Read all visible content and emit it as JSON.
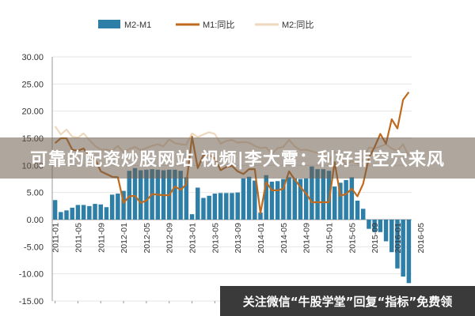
{
  "chart_data": {
    "type": "bar+line",
    "legend_position": "top",
    "colors": {
      "m2m1": "#2E7FA8",
      "m1": "#C06A1E",
      "m2": "#EED9BE"
    },
    "series": [
      {
        "name": "M2-M1",
        "type": "bar",
        "values": [
          3.6,
          1.4,
          1.7,
          2.2,
          2.7,
          2.7,
          2.5,
          2.9,
          2.8,
          2.3,
          4.6,
          4.8,
          5.3,
          9.0,
          9.5,
          9.1,
          9.2,
          9.3,
          9.2,
          9.1,
          9.2,
          9.2,
          9.0,
          7.8,
          1.0,
          5.9,
          4.0,
          4.4,
          4.8,
          4.9,
          4.9,
          4.9,
          5.0,
          7.6,
          7.9,
          7.2,
          1.3,
          8.2,
          7.0,
          7.1,
          7.5,
          7.8,
          7.6,
          7.5,
          7.6,
          9.8,
          9.3,
          9.3,
          9.0,
          6.1,
          6.8,
          7.3,
          7.8,
          3.5,
          2.0,
          -1.7,
          -2.3,
          -2.3,
          -4.0,
          -6.0,
          -9.0,
          -10.5,
          -11.7
        ]
      },
      {
        "name": "M1:同比",
        "type": "line",
        "values": [
          14.1,
          15.0,
          15.0,
          12.9,
          12.7,
          13.1,
          11.6,
          11.2,
          8.9,
          8.4,
          7.9,
          7.8,
          3.1,
          4.3,
          4.4,
          3.1,
          3.5,
          4.7,
          4.6,
          4.5,
          4.5,
          6.1,
          5.5,
          6.5,
          15.3,
          9.5,
          11.9,
          11.9,
          11.3,
          9.1,
          9.7,
          9.9,
          8.9,
          8.4,
          9.3,
          9.3,
          1.2,
          6.9,
          5.4,
          5.4,
          5.7,
          8.9,
          7.4,
          6.0,
          4.8,
          3.2,
          3.2,
          3.2,
          3.2,
          10.6,
          4.4,
          4.7,
          5.7,
          4.3,
          6.6,
          11.4,
          13.4,
          15.8,
          14.0,
          18.5,
          16.8,
          22.1,
          23.5
        ]
      },
      {
        "name": "M2:同比",
        "type": "line",
        "values": [
          17.2,
          15.7,
          16.6,
          15.3,
          15.1,
          15.9,
          14.7,
          13.6,
          12.9,
          12.9,
          12.7,
          13.6,
          12.4,
          13.0,
          13.4,
          12.8,
          13.2,
          13.6,
          13.9,
          13.5,
          14.8,
          14.1,
          13.9,
          13.8,
          15.9,
          15.2,
          15.7,
          16.1,
          15.8,
          14.0,
          14.5,
          14.7,
          14.2,
          14.3,
          14.2,
          13.6,
          13.2,
          13.3,
          12.1,
          13.2,
          13.4,
          14.7,
          13.5,
          12.8,
          12.9,
          12.6,
          12.3,
          12.2,
          10.8,
          12.5,
          11.6,
          10.1,
          10.8,
          10.3,
          11.0,
          13.3,
          13.1,
          13.5,
          13.9,
          13.1,
          12.7,
          13.9,
          11.7
        ]
      }
    ],
    "ylim": [
      -15,
      30
    ],
    "yticks": [
      "30.00",
      "25.00",
      "20.00",
      "15.00",
      "10.00",
      "5.00",
      "0.00",
      "-5.00",
      "-10.00",
      "-15.00"
    ],
    "xticks": [
      "2011-01",
      "2011-05",
      "2011-09",
      "2012-01",
      "2012-05",
      "2012-09",
      "2013-01",
      "2013-05",
      "2013-09",
      "2014-01",
      "2014-05",
      "2014-09",
      "2015-01",
      "2015-05",
      "2015-09",
      "2016-01",
      "2016-05"
    ],
    "grid": true
  },
  "banner": {
    "text": "可靠的配资炒股网站 视频|李大霄：利好非空穴来风"
  },
  "watermark": {
    "text": "关注微信“牛股学堂”回复“指标”免费领"
  }
}
